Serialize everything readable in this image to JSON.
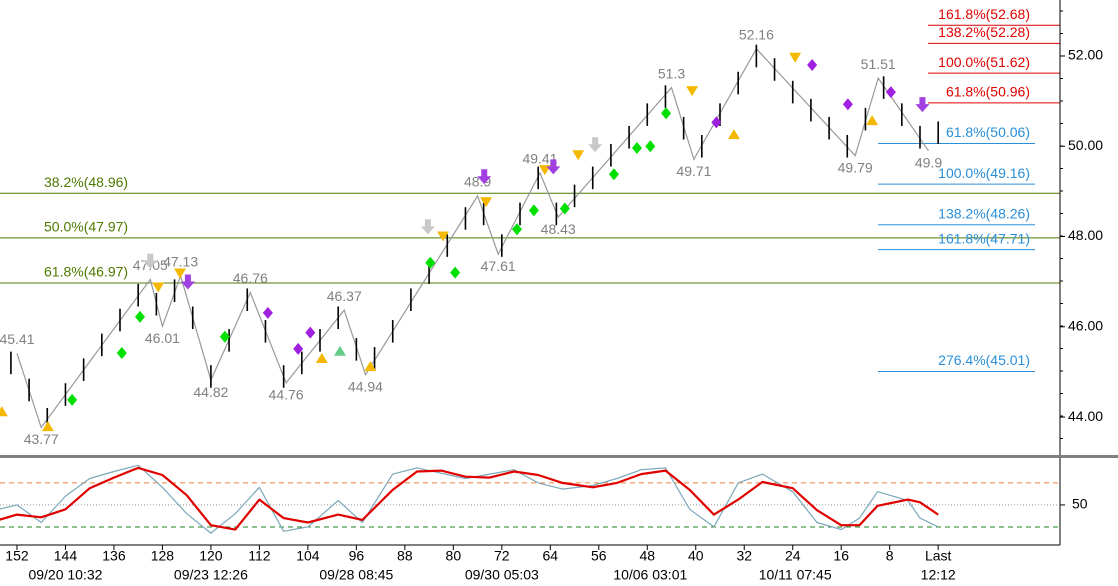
{
  "chart_data": {
    "type": "ohlc",
    "xlim": [
      154.8,
      -20.1
    ],
    "ylim": [
      43.16,
      53.24
    ],
    "yticks": [
      {
        "value": 44,
        "label": "44.00"
      },
      {
        "value": 46,
        "label": "46.00"
      },
      {
        "value": 48,
        "label": "48.00"
      },
      {
        "value": 50,
        "label": "50.00"
      },
      {
        "value": 52,
        "label": "52.00"
      }
    ],
    "xticks": [
      152,
      144,
      136,
      128,
      120,
      112,
      104,
      96,
      88,
      80,
      72,
      64,
      56,
      48,
      40,
      32,
      24,
      16,
      8,
      {
        "value": 0,
        "label": "Last"
      }
    ],
    "xdates": [
      {
        "value": 144,
        "label": "09/20 10:32"
      },
      {
        "value": 120,
        "label": "09/23 12:26"
      },
      {
        "value": 96,
        "label": "09/28 08:45"
      },
      {
        "value": 72,
        "label": "09/30 05:03"
      },
      {
        "value": 47.5,
        "label": "10/06 03:01"
      },
      {
        "value": 23.6,
        "label": "10/11 07:45"
      },
      {
        "value": 0,
        "label": "12:12"
      }
    ],
    "price": {
      "color": "#000000",
      "x": [
        153,
        150,
        147,
        144,
        141,
        138,
        135,
        132,
        129,
        126,
        123,
        120,
        117,
        114,
        111,
        108,
        105,
        102,
        99,
        96,
        93,
        90,
        87,
        84,
        81,
        78,
        75,
        72,
        69,
        66,
        63,
        60,
        57,
        54,
        51,
        48,
        45,
        42,
        39,
        36,
        33,
        30,
        27,
        24,
        21,
        18,
        15,
        12,
        9,
        6,
        3,
        0
      ],
      "high": [
        45.45,
        44.85,
        44.2,
        44.75,
        45.3,
        45.85,
        46.4,
        46.95,
        46.75,
        47.05,
        46.45,
        45.15,
        45.95,
        46.85,
        46.15,
        45.15,
        45.45,
        45.95,
        46.45,
        45.75,
        45.55,
        46.15,
        46.85,
        47.45,
        48.05,
        48.65,
        48.75,
        48.05,
        48.75,
        49.55,
        48.75,
        49.15,
        49.55,
        50.05,
        50.45,
        50.95,
        51.35,
        50.65,
        50.25,
        50.95,
        51.65,
        52.25,
        51.95,
        51.45,
        51.05,
        50.65,
        50.25,
        50.85,
        51.55,
        50.95,
        50.45,
        50.55
      ],
      "low": [
        44.95,
        44.35,
        43.7,
        44.25,
        44.8,
        45.35,
        45.9,
        46.45,
        46.25,
        46.55,
        45.95,
        44.65,
        45.45,
        46.35,
        45.65,
        44.65,
        44.95,
        45.45,
        45.95,
        45.25,
        45.05,
        45.65,
        46.35,
        46.95,
        47.55,
        48.15,
        48.25,
        47.55,
        48.25,
        49.05,
        48.25,
        48.65,
        49.05,
        49.55,
        49.95,
        50.45,
        50.85,
        50.15,
        49.75,
        50.45,
        51.15,
        51.75,
        51.45,
        50.95,
        50.55,
        50.15,
        49.75,
        50.35,
        51.05,
        50.45,
        49.95,
        50.05
      ]
    },
    "swings": {
      "color": "#999999",
      "x": [
        152,
        148,
        130,
        128,
        125,
        120,
        113.5,
        107.6,
        98,
        94.5,
        76,
        72.6,
        65.7,
        62.7,
        44,
        40.3,
        30,
        13.7,
        9.9,
        1.6
      ],
      "values": [
        45.41,
        43.77,
        47.05,
        46.01,
        47.13,
        44.82,
        46.76,
        44.76,
        46.37,
        44.94,
        48.9,
        47.61,
        49.41,
        48.43,
        51.3,
        49.71,
        52.16,
        49.79,
        51.51,
        49.9
      ]
    },
    "retracements": {
      "color": "#4d7a00",
      "levels": [
        {
          "value": 48.96,
          "label": "38.2%(48.96)"
        },
        {
          "value": 47.97,
          "label": "50.0%(47.97)"
        },
        {
          "value": 46.97,
          "label": "61.8%(46.97)"
        }
      ]
    },
    "targets_up": {
      "color": "#e00000",
      "levels": [
        {
          "value": 52.68,
          "label": "161.8%(52.68)"
        },
        {
          "value": 52.28,
          "label": "138.2%(52.28)"
        },
        {
          "value": 51.62,
          "label": "100.0%(51.62)"
        },
        {
          "value": 50.96,
          "label": "61.8%(50.96)"
        }
      ]
    },
    "targets_down": {
      "color": "#2a8fd8",
      "levels": [
        {
          "value": 50.06,
          "label": "61.8%(50.06)"
        },
        {
          "value": 49.16,
          "label": "100.0%(49.16)"
        },
        {
          "value": 48.26,
          "label": "138.2%(48.26)"
        },
        {
          "value": 47.71,
          "label": "161.8%(47.71)"
        },
        {
          "value": 45.01,
          "label": "276.4%(45.01)"
        }
      ]
    },
    "markers": [
      {
        "shape": "diamond",
        "color": "#00e000",
        "x": [
          142.9,
          134.7,
          131.7,
          117.7,
          83.8,
          79.7,
          69.5,
          66.7,
          61.6,
          53.5,
          49.7,
          47.5,
          44.9
        ],
        "y": [
          44.38,
          45.42,
          46.22,
          45.78,
          47.42,
          47.2,
          48.16,
          48.58,
          48.62,
          49.38,
          49.96,
          50.0,
          50.73
        ]
      },
      {
        "shape": "diamond",
        "color": "#a020e0",
        "x": [
          110.6,
          105.6,
          103.6,
          36.6,
          20.8,
          14.9,
          7.8
        ],
        "y": [
          46.31,
          45.51,
          45.87,
          50.53,
          51.8,
          50.93,
          51.2
        ]
      },
      {
        "shape": "down",
        "color": "#f5b800",
        "x": [
          128.7,
          125.1,
          81.7,
          74.6,
          64.9,
          59.4,
          40.6,
          23.6
        ],
        "y": [
          46.87,
          47.18,
          48.0,
          48.76,
          49.47,
          49.8,
          51.22,
          51.96
        ]
      },
      {
        "shape": "up",
        "color": "#f5b800",
        "x": [
          154.5,
          146.9,
          101.7,
          93.7,
          33.7,
          10.9
        ],
        "y": [
          44.13,
          43.8,
          45.31,
          45.13,
          50.27,
          50.58
        ]
      },
      {
        "shape": "arrow",
        "color": "#a040e0",
        "x": [
          123.8,
          74.9,
          63.5,
          2.6
        ],
        "y": [
          46.96,
          49.29,
          49.51,
          50.89
        ]
      },
      {
        "shape": "arrow",
        "color": "#c8c8c8",
        "x": [
          130,
          84.2,
          56.6
        ],
        "y": [
          47.42,
          48.18,
          50.0
        ]
      },
      {
        "shape": "up",
        "color": "#66cc88",
        "x": [
          98.7
        ],
        "y": [
          45.47
        ]
      }
    ],
    "oscillator": {
      "ylim": [
        4.5,
        101
      ],
      "yticks": [
        50
      ],
      "bands": [
        {
          "value": 75,
          "color": "#f08040"
        },
        {
          "value": 50,
          "color": "#999999"
        },
        {
          "value": 25,
          "color": "#208020"
        }
      ],
      "x": [
        155,
        152,
        148,
        144,
        140,
        136,
        132,
        128,
        124,
        120,
        116,
        112,
        108,
        104,
        99,
        95,
        90,
        86,
        82,
        78,
        74,
        70,
        66,
        62,
        57,
        53,
        49,
        45,
        41,
        37,
        33,
        29,
        24,
        20,
        16,
        13,
        10,
        5,
        3,
        0
      ],
      "series": [
        {
          "color": "#7aa8b8",
          "values": [
            45,
            50,
            30,
            60,
            80,
            88,
            95,
            70,
            40,
            18,
            40,
            70,
            20,
            25,
            55,
            30,
            85,
            92,
            86,
            80,
            85,
            90,
            75,
            68,
            72,
            80,
            90,
            92,
            45,
            25,
            75,
            85,
            65,
            30,
            22,
            35,
            65,
            55,
            35,
            25
          ]
        },
        {
          "color": "#e00000",
          "values": [
            33,
            39,
            36,
            45,
            69,
            81,
            92,
            84,
            61,
            27,
            22,
            56,
            35,
            30,
            39,
            33,
            67,
            88,
            89,
            82,
            81,
            88,
            84,
            75,
            70,
            75,
            85,
            89,
            67,
            39,
            56,
            76,
            69,
            44,
            27,
            27,
            49,
            56,
            53,
            39
          ]
        }
      ]
    }
  }
}
